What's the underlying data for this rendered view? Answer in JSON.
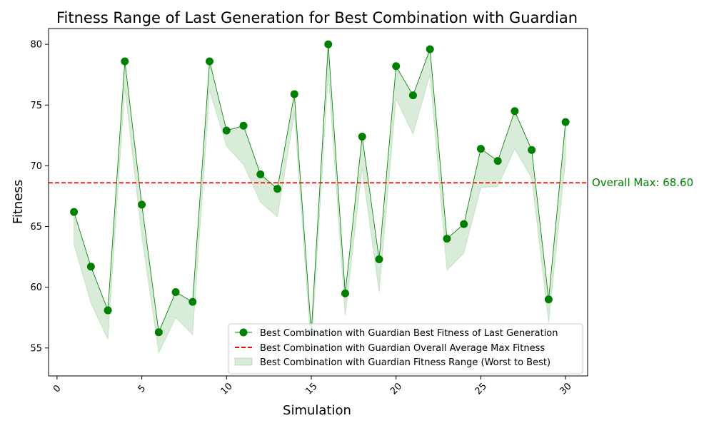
{
  "chart_data": {
    "type": "line",
    "title": "Fitness Range of Last Generation for Best Combination with Guardian",
    "xlabel": "Simulation",
    "ylabel": "Fitness",
    "xlim": [
      -0.5,
      31.3
    ],
    "ylim": [
      52.7,
      81.3
    ],
    "xticks": [
      0,
      5,
      10,
      15,
      20,
      25,
      30
    ],
    "yticks": [
      55,
      60,
      65,
      70,
      75,
      80
    ],
    "x": [
      1,
      2,
      3,
      4,
      5,
      6,
      7,
      8,
      9,
      10,
      11,
      12,
      13,
      14,
      15,
      16,
      17,
      18,
      19,
      20,
      21,
      22,
      23,
      24,
      25,
      26,
      27,
      28,
      29,
      30
    ],
    "series": [
      {
        "name": "Best Combination with Guardian Best Fitness of Last Generation",
        "type": "line-marker",
        "color": "#008000",
        "values": [
          66.2,
          61.7,
          58.1,
          78.6,
          66.8,
          56.3,
          59.6,
          58.8,
          78.6,
          72.9,
          73.3,
          69.3,
          68.1,
          75.9,
          56.3,
          80.0,
          59.5,
          72.4,
          62.3,
          78.2,
          75.8,
          79.6,
          64.0,
          65.2,
          71.4,
          70.4,
          74.5,
          71.3,
          59.0,
          73.6
        ]
      },
      {
        "name": "Best Combination with Guardian Fitness Range (Worst to Best)",
        "type": "band",
        "color": "#008000",
        "lower": [
          63.5,
          58.7,
          55.7,
          76.4,
          64.2,
          54.6,
          57.5,
          56.1,
          76.2,
          71.6,
          70.1,
          67.0,
          65.8,
          74.3,
          54.9,
          77.6,
          57.7,
          69.8,
          59.6,
          75.5,
          72.6,
          77.5,
          61.4,
          62.8,
          68.2,
          68.3,
          71.4,
          69.0,
          57.1,
          70.5
        ],
        "upper": [
          66.2,
          61.7,
          58.1,
          78.6,
          66.8,
          56.3,
          59.6,
          58.8,
          78.6,
          72.9,
          73.3,
          69.3,
          68.1,
          75.9,
          56.3,
          80.0,
          59.5,
          72.4,
          62.3,
          78.2,
          75.8,
          79.6,
          64.0,
          65.2,
          71.4,
          70.4,
          74.5,
          71.3,
          59.0,
          73.6
        ]
      },
      {
        "name": "Best Combination with Guardian Overall Average Max Fitness",
        "type": "hline",
        "color": "#ff0000",
        "value": 68.6
      }
    ],
    "annotation": {
      "text": "Overall Max: 68.60",
      "color": "#008000"
    },
    "legend_position": "lower-right",
    "grid": false
  }
}
